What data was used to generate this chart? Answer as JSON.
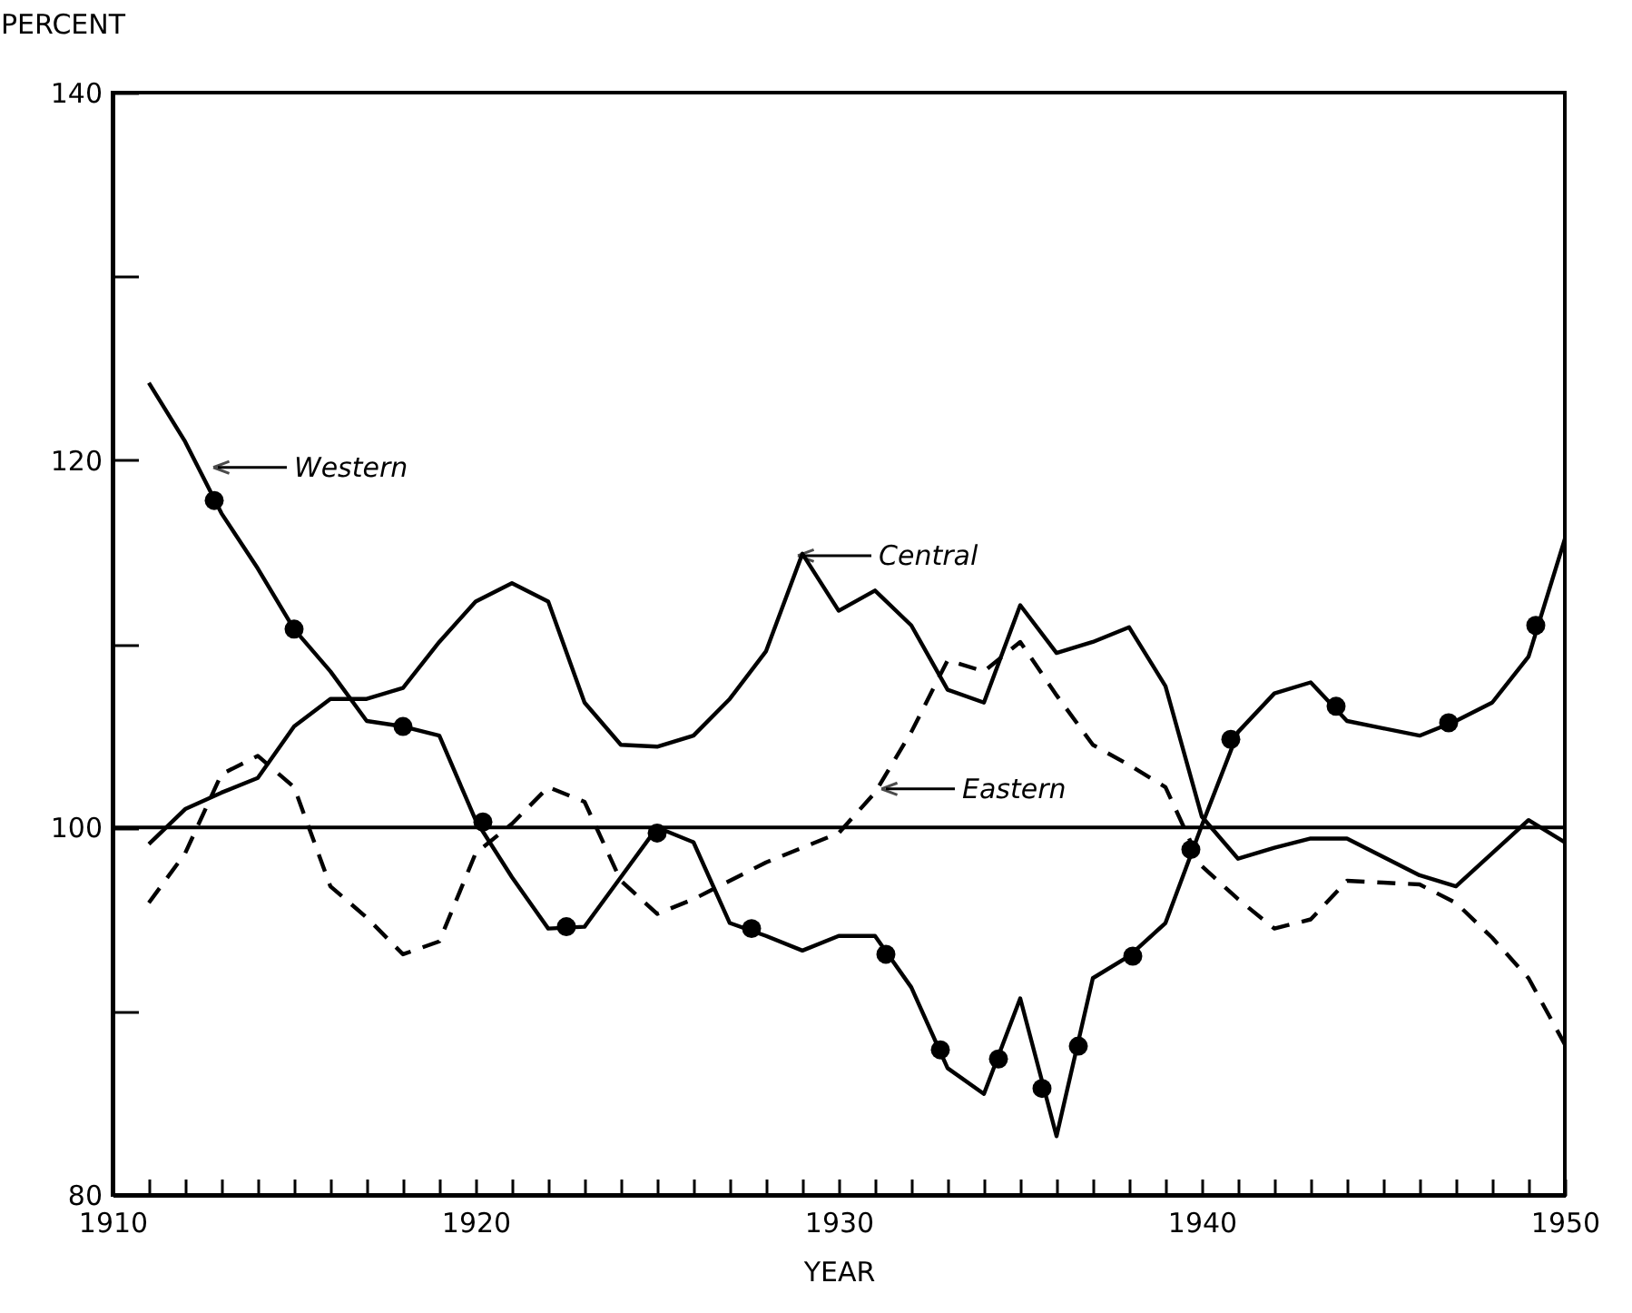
{
  "chart_data": {
    "type": "line",
    "xlabel": "YEAR",
    "ylabel": "PERCENT",
    "x": [
      1911,
      1912,
      1913,
      1914,
      1915,
      1916,
      1917,
      1918,
      1919,
      1920,
      1921,
      1922,
      1923,
      1924,
      1925,
      1926,
      1927,
      1928,
      1929,
      1930,
      1931,
      1932,
      1933,
      1934,
      1935,
      1936,
      1937,
      1938,
      1939,
      1940,
      1941,
      1942,
      1943,
      1944,
      1945,
      1946,
      1947,
      1948,
      1949,
      1950
    ],
    "series": [
      {
        "color": "#000000",
        "line_style": "solid",
        "values": [
          124.2,
          121.0,
          117.1,
          114.1,
          110.8,
          108.5,
          105.8,
          105.5,
          105.0,
          100.4,
          97.3,
          94.5,
          94.6,
          97.3,
          100.0,
          99.2,
          94.8,
          94.1,
          93.3,
          94.1,
          94.1,
          91.3,
          86.9,
          85.5,
          90.7,
          83.2,
          91.8,
          93.0,
          94.8,
          100.1,
          105.2,
          107.3,
          107.9,
          105.8,
          105.4,
          105.0,
          105.8,
          106.8,
          109.3,
          115.7
        ]
      },
      {
        "color": "#000000",
        "line_style": "solid",
        "values": [
          99.1,
          101.0,
          101.9,
          102.7,
          105.5,
          107.0,
          107.0,
          107.6,
          110.1,
          112.3,
          113.3,
          112.3,
          106.8,
          104.5,
          104.4,
          105.0,
          107.0,
          109.6,
          114.9,
          111.8,
          112.9,
          111.0,
          107.5,
          106.8,
          112.1,
          109.5,
          110.1,
          110.9,
          107.7,
          100.6,
          98.3,
          98.9,
          99.4,
          99.4,
          98.4,
          97.4,
          96.8,
          98.6,
          100.4,
          99.2
        ]
      },
      {
        "color": "#000000",
        "line_style": "dashed",
        "values": [
          95.9,
          98.6,
          102.9,
          103.9,
          102.2,
          96.8,
          95.1,
          93.1,
          93.8,
          98.6,
          100.2,
          102.2,
          101.4,
          97.1,
          95.3,
          96.1,
          97.1,
          98.1,
          98.9,
          99.7,
          101.9,
          105.2,
          109.1,
          108.5,
          110.1,
          107.2,
          104.5,
          103.4,
          102.2,
          97.9,
          96.1,
          94.5,
          95.0,
          97.1,
          97.0,
          96.9,
          95.9,
          94.0,
          91.8,
          88.2
        ]
      },
      {
        "type": "scatter",
        "marker": "circle",
        "color": "#000000",
        "x": [
          1912.8,
          1915.0,
          1918.0,
          1920.2,
          1922.5,
          1925.0,
          1927.6,
          1931.3,
          1932.8,
          1934.4,
          1935.6,
          1936.6,
          1938.1,
          1939.7,
          1940.8,
          1943.7,
          1946.8,
          1949.2
        ],
        "values": [
          117.8,
          110.8,
          105.5,
          100.3,
          94.6,
          99.7,
          94.5,
          93.1,
          87.9,
          87.4,
          85.8,
          88.1,
          93.0,
          98.8,
          104.8,
          106.6,
          105.7,
          111.0
        ]
      }
    ],
    "xlim": [
      1910,
      1950
    ],
    "xticks": [
      1910,
      {
        "value": 1911,
        "label": null
      },
      {
        "value": 1912,
        "label": null
      },
      {
        "value": 1913,
        "label": null
      },
      {
        "value": 1914,
        "label": null
      },
      {
        "value": 1915,
        "label": null
      },
      {
        "value": 1916,
        "label": null
      },
      {
        "value": 1917,
        "label": null
      },
      {
        "value": 1918,
        "label": null
      },
      {
        "value": 1919,
        "label": null
      },
      1920,
      {
        "value": 1921,
        "label": null
      },
      {
        "value": 1922,
        "label": null
      },
      {
        "value": 1923,
        "label": null
      },
      {
        "value": 1924,
        "label": null
      },
      {
        "value": 1925,
        "label": null
      },
      {
        "value": 1926,
        "label": null
      },
      {
        "value": 1927,
        "label": null
      },
      {
        "value": 1928,
        "label": null
      },
      {
        "value": 1929,
        "label": null
      },
      1930,
      {
        "value": 1931,
        "label": null
      },
      {
        "value": 1932,
        "label": null
      },
      {
        "value": 1933,
        "label": null
      },
      {
        "value": 1934,
        "label": null
      },
      {
        "value": 1935,
        "label": null
      },
      {
        "value": 1936,
        "label": null
      },
      {
        "value": 1937,
        "label": null
      },
      {
        "value": 1938,
        "label": null
      },
      {
        "value": 1939,
        "label": null
      },
      1940,
      {
        "value": 1941,
        "label": null
      },
      {
        "value": 1942,
        "label": null
      },
      {
        "value": 1943,
        "label": null
      },
      {
        "value": 1944,
        "label": null
      },
      {
        "value": 1945,
        "label": null
      },
      {
        "value": 1946,
        "label": null
      },
      {
        "value": 1947,
        "label": null
      },
      {
        "value": 1948,
        "label": null
      },
      {
        "value": 1949,
        "label": null
      },
      1950
    ],
    "ylim": [
      80,
      140
    ],
    "yticks": [
      80,
      {
        "value": 90,
        "label": null
      },
      100,
      {
        "value": 110,
        "label": null
      },
      120,
      {
        "value": 130,
        "label": null
      },
      140
    ],
    "ref_lines": [
      {
        "axis": "y",
        "value": 100,
        "color": "#000000",
        "line_style": "solid"
      }
    ],
    "annotations": [
      {
        "text": "Western",
        "x": 1912.9,
        "y": 119.6
      },
      {
        "text": "Central",
        "x": 1929.0,
        "y": 114.8
      },
      {
        "text": "Eastern",
        "x": 1931.3,
        "y": 102.1
      }
    ],
    "grid": false
  }
}
